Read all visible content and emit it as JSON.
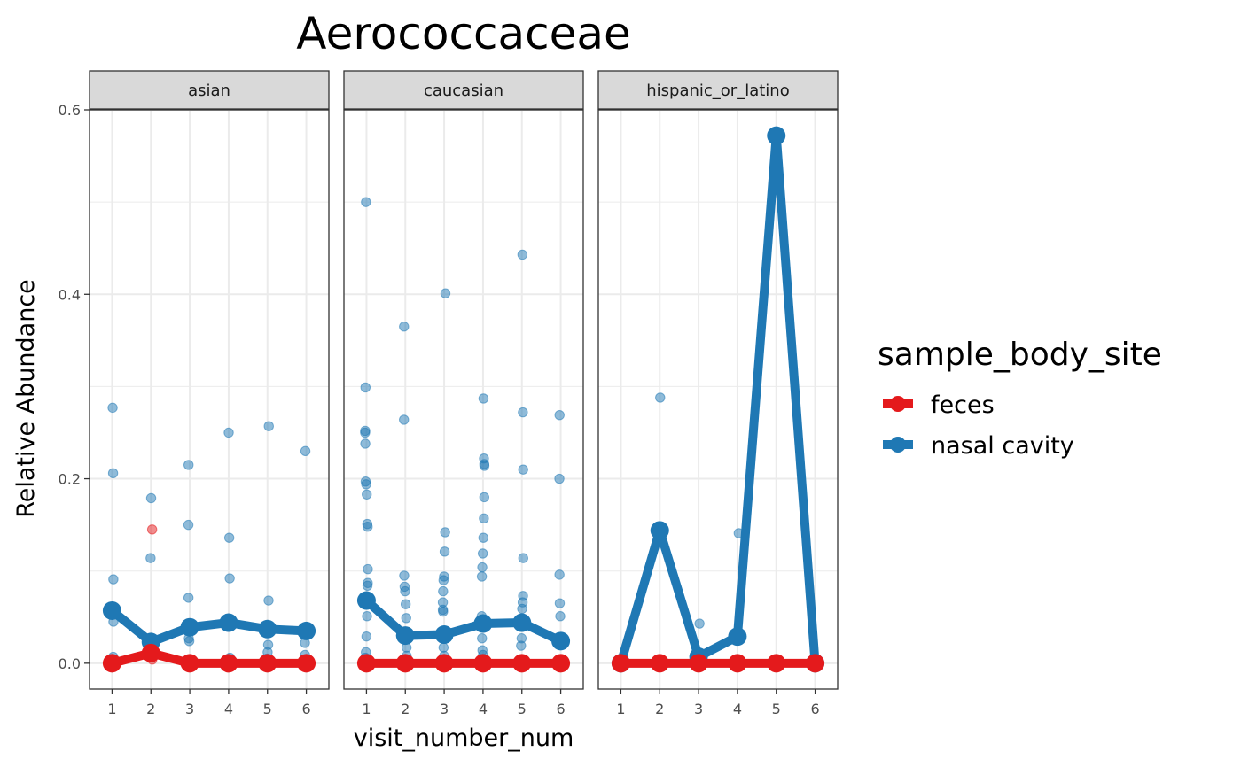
{
  "chart_data": {
    "type": "line",
    "title": "Aerococcaceae",
    "xlabel": "visit_number_num",
    "ylabel": "Relative Abundance",
    "x": [
      1,
      2,
      3,
      4,
      5,
      6
    ],
    "xlim": [
      0.42,
      6.58
    ],
    "ylim": [
      -0.028,
      0.6
    ],
    "yticks": [
      0.0,
      0.2,
      0.4,
      0.6
    ],
    "ytick_labels": [
      "0.0",
      "0.2",
      "0.4",
      "0.6"
    ],
    "grid": true,
    "legend": {
      "title": "sample_body_site",
      "position": "right",
      "entries": [
        "feces",
        "nasal cavity"
      ]
    },
    "colors": {
      "feces": "#e41a1c",
      "nasal cavity": "#1f78b4"
    },
    "facets": [
      {
        "label": "asian",
        "series": [
          {
            "name": "feces",
            "mean": [
              0.0,
              0.011,
              0.0,
              0.0,
              0.0,
              0.0
            ]
          },
          {
            "name": "nasal cavity",
            "mean": [
              0.057,
              0.023,
              0.039,
              0.044,
              0.037,
              0.035
            ]
          }
        ],
        "points": {
          "feces": [
            [
              2,
              0.145
            ],
            [
              2,
              0.004
            ],
            [
              2,
              0.009
            ],
            [
              1,
              0.0
            ],
            [
              3,
              0.0
            ],
            [
              4,
              0.0
            ],
            [
              5,
              0.0
            ],
            [
              6,
              0.0
            ]
          ],
          "nasal cavity": [
            [
              1,
              0.277
            ],
            [
              1,
              0.206
            ],
            [
              1,
              0.091
            ],
            [
              1,
              0.045
            ],
            [
              1,
              0.007
            ],
            [
              1,
              0.003
            ],
            [
              2,
              0.179
            ],
            [
              2,
              0.114
            ],
            [
              2,
              0.025
            ],
            [
              3,
              0.215
            ],
            [
              3,
              0.15
            ],
            [
              3,
              0.071
            ],
            [
              3,
              0.027
            ],
            [
              3,
              0.024
            ],
            [
              4,
              0.25
            ],
            [
              4,
              0.136
            ],
            [
              4,
              0.092
            ],
            [
              4,
              0.006
            ],
            [
              5,
              0.257
            ],
            [
              5,
              0.068
            ],
            [
              5,
              0.02
            ],
            [
              5,
              0.012
            ],
            [
              5,
              0.005
            ],
            [
              6,
              0.23
            ],
            [
              6,
              0.031
            ],
            [
              6,
              0.022
            ],
            [
              6,
              0.009
            ],
            [
              6,
              0.004
            ]
          ]
        }
      },
      {
        "label": "caucasian",
        "series": [
          {
            "name": "feces",
            "mean": [
              0.0,
              0.0,
              0.0,
              0.0,
              0.0,
              0.0
            ]
          },
          {
            "name": "nasal cavity",
            "mean": [
              0.068,
              0.03,
              0.031,
              0.043,
              0.044,
              0.024
            ]
          }
        ],
        "points": {
          "feces": [
            [
              1,
              0.0
            ],
            [
              2,
              0.0
            ],
            [
              3,
              0.0
            ],
            [
              4,
              0.0
            ],
            [
              5,
              0.0
            ],
            [
              6,
              0.0
            ]
          ],
          "nasal cavity": [
            [
              1,
              0.5
            ],
            [
              1,
              0.299
            ],
            [
              1,
              0.252
            ],
            [
              1,
              0.25
            ],
            [
              1,
              0.238
            ],
            [
              1,
              0.197
            ],
            [
              1,
              0.194
            ],
            [
              1,
              0.183
            ],
            [
              1,
              0.151
            ],
            [
              1,
              0.148
            ],
            [
              1,
              0.102
            ],
            [
              1,
              0.087
            ],
            [
              1,
              0.084
            ],
            [
              1,
              0.051
            ],
            [
              1,
              0.029
            ],
            [
              1,
              0.012
            ],
            [
              1,
              0.006
            ],
            [
              2,
              0.365
            ],
            [
              2,
              0.264
            ],
            [
              2,
              0.095
            ],
            [
              2,
              0.083
            ],
            [
              2,
              0.078
            ],
            [
              2,
              0.064
            ],
            [
              2,
              0.049
            ],
            [
              2,
              0.017
            ],
            [
              2,
              0.008
            ],
            [
              3,
              0.401
            ],
            [
              3,
              0.142
            ],
            [
              3,
              0.121
            ],
            [
              3,
              0.094
            ],
            [
              3,
              0.09
            ],
            [
              3,
              0.078
            ],
            [
              3,
              0.066
            ],
            [
              3,
              0.058
            ],
            [
              3,
              0.056
            ],
            [
              3,
              0.017
            ],
            [
              3,
              0.008
            ],
            [
              4,
              0.287
            ],
            [
              4,
              0.222
            ],
            [
              4,
              0.216
            ],
            [
              4,
              0.214
            ],
            [
              4,
              0.18
            ],
            [
              4,
              0.157
            ],
            [
              4,
              0.136
            ],
            [
              4,
              0.119
            ],
            [
              4,
              0.104
            ],
            [
              4,
              0.094
            ],
            [
              4,
              0.051
            ],
            [
              4,
              0.047
            ],
            [
              4,
              0.027
            ],
            [
              4,
              0.014
            ],
            [
              4,
              0.009
            ],
            [
              5,
              0.443
            ],
            [
              5,
              0.272
            ],
            [
              5,
              0.21
            ],
            [
              5,
              0.114
            ],
            [
              5,
              0.073
            ],
            [
              5,
              0.066
            ],
            [
              5,
              0.059
            ],
            [
              5,
              0.027
            ],
            [
              5,
              0.019
            ],
            [
              6,
              0.269
            ],
            [
              6,
              0.2
            ],
            [
              6,
              0.096
            ],
            [
              6,
              0.065
            ],
            [
              6,
              0.051
            ]
          ]
        }
      },
      {
        "label": "hispanic_or_latino",
        "series": [
          {
            "name": "feces",
            "mean": [
              0.0,
              0.0,
              0.0,
              0.0,
              0.0,
              0.0
            ]
          },
          {
            "name": "nasal cavity",
            "mean": [
              0.0,
              0.144,
              0.007,
              0.029,
              0.572,
              0.0
            ]
          }
        ],
        "points": {
          "feces": [
            [
              1,
              0.0
            ],
            [
              2,
              0.0
            ],
            [
              3,
              0.0
            ],
            [
              4,
              0.0
            ],
            [
              5,
              0.0
            ],
            [
              6,
              0.0
            ]
          ],
          "nasal cavity": [
            [
              2,
              0.288
            ],
            [
              3,
              0.043
            ],
            [
              4,
              0.141
            ],
            [
              5,
              0.572
            ]
          ]
        }
      }
    ]
  }
}
